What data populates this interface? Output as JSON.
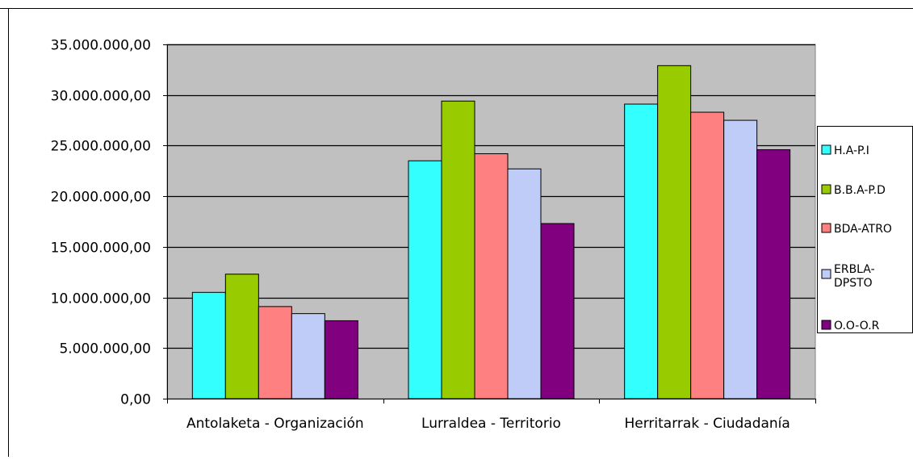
{
  "chart_data": {
    "type": "bar",
    "title": "",
    "xlabel": "",
    "ylabel": "",
    "categories": [
      "Antolaketa - Organización",
      "Lurraldea - Territorio",
      "Herritarrak - Ciudadanía"
    ],
    "series": [
      {
        "name": "H.A-P.I",
        "color": "#33ffff",
        "values": [
          10500000,
          23500000,
          29100000
        ]
      },
      {
        "name": "B.B.A-P.D",
        "color": "#99cc00",
        "values": [
          12300000,
          29400000,
          32900000
        ]
      },
      {
        "name": "BDA-ATRO",
        "color": "#ff8080",
        "values": [
          9100000,
          24200000,
          28300000
        ]
      },
      {
        "name": "ERBLA-DPSTO",
        "color": "#c0ccf8",
        "values": [
          8400000,
          22700000,
          27500000
        ]
      },
      {
        "name": "O.O-O.R",
        "color": "#800080",
        "values": [
          7700000,
          17300000,
          24600000
        ]
      }
    ],
    "ylim": [
      0,
      35000000
    ],
    "yticks": [
      0,
      5000000,
      10000000,
      15000000,
      20000000,
      25000000,
      30000000,
      35000000
    ],
    "ytick_labels": [
      "0,00",
      "5.000.000,00",
      "10.000.000,00",
      "15.000.000,00",
      "20.000.000,00",
      "25.000.000,00",
      "30.000.000,00",
      "35.000.000,00"
    ],
    "grid": true,
    "plot_background": "#c0c0c0",
    "legend_position": "right"
  }
}
